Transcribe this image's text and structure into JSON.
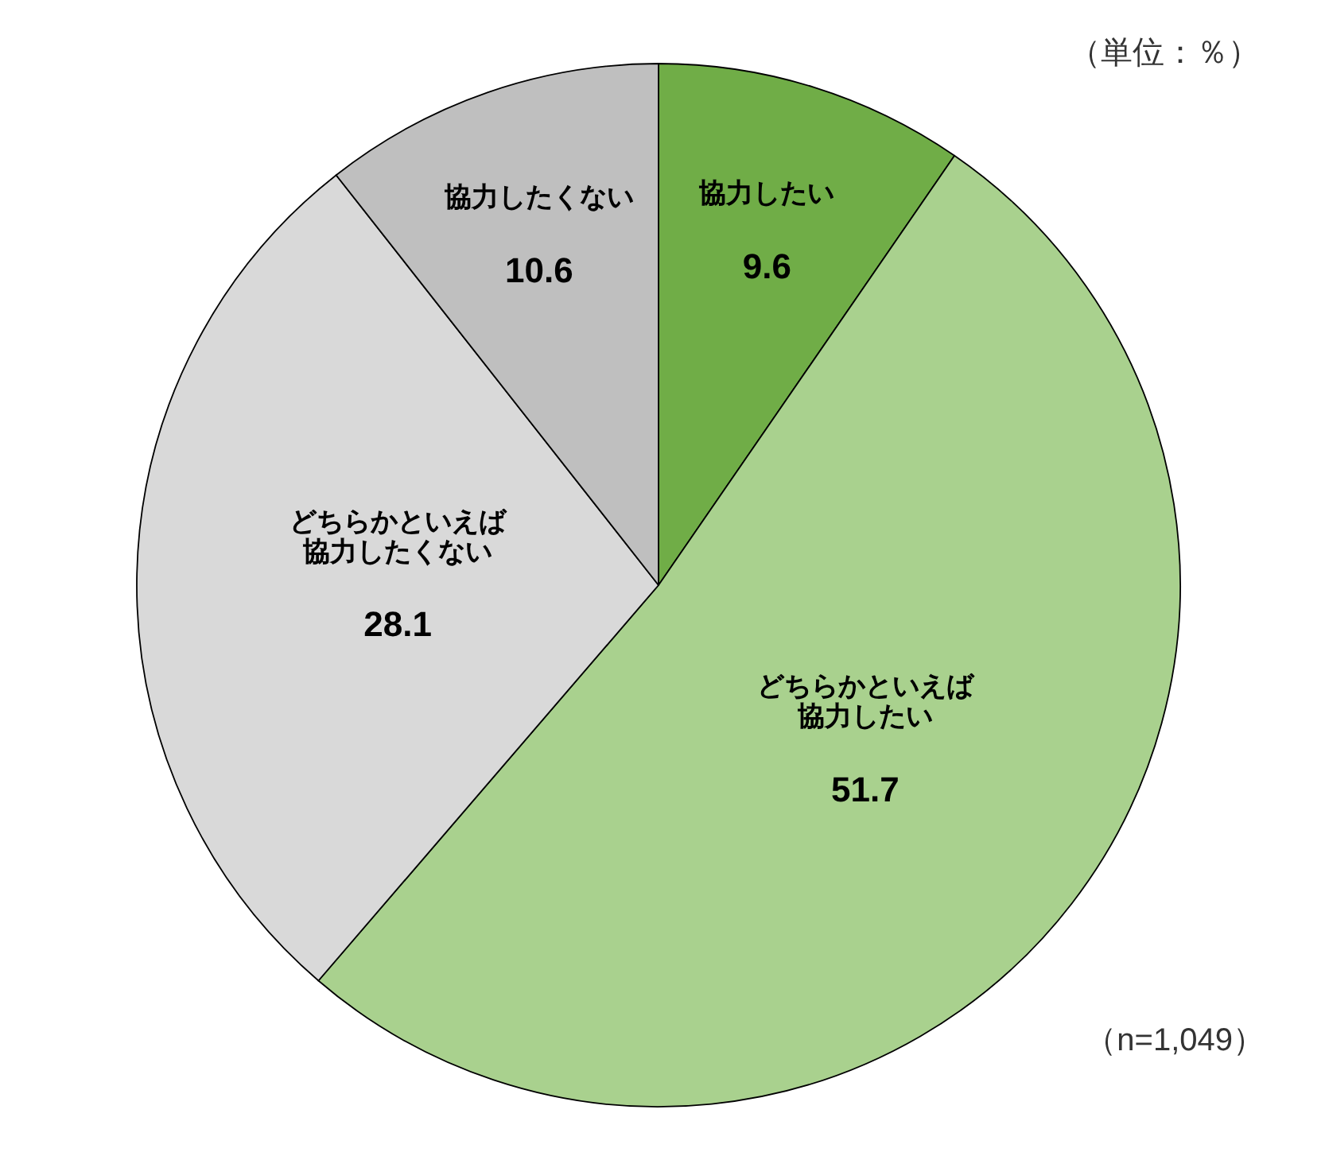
{
  "chart_data": {
    "type": "pie",
    "categories": [
      "協力したい",
      "どちらかといえば協力したい",
      "どちらかといえば協力したくない",
      "協力したくない"
    ],
    "values": [
      9.6,
      51.7,
      28.1,
      10.6
    ],
    "colors": [
      "#70ad47",
      "#a9d18e",
      "#d9d9d9",
      "#bfbfbf"
    ],
    "data_labels": true,
    "annotations": [
      "（単位：％）",
      "（n=1,049）"
    ]
  }
}
